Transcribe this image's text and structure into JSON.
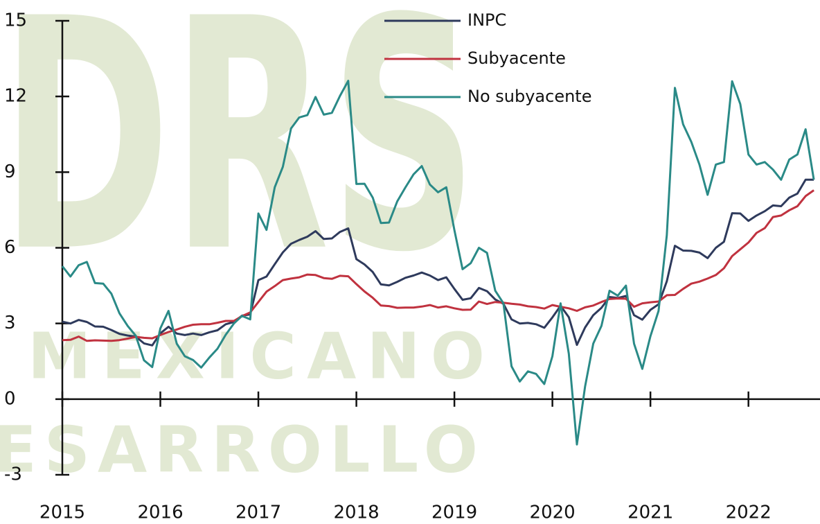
{
  "watermark": {
    "logo": "DRS",
    "line1": "MEXICANO",
    "line2": "ESARROLLO"
  },
  "chart_data": {
    "type": "line",
    "x": [
      2015,
      2015.083,
      2015.167,
      2015.25,
      2015.333,
      2015.417,
      2015.5,
      2015.583,
      2015.667,
      2015.75,
      2015.833,
      2015.917,
      2016,
      2016.083,
      2016.167,
      2016.25,
      2016.333,
      2016.417,
      2016.5,
      2016.583,
      2016.667,
      2016.75,
      2016.833,
      2016.917,
      2017,
      2017.083,
      2017.167,
      2017.25,
      2017.333,
      2017.417,
      2017.5,
      2017.583,
      2017.667,
      2017.75,
      2017.833,
      2017.917,
      2018,
      2018.083,
      2018.167,
      2018.25,
      2018.333,
      2018.417,
      2018.5,
      2018.583,
      2018.667,
      2018.75,
      2018.833,
      2018.917,
      2019,
      2019.083,
      2019.167,
      2019.25,
      2019.333,
      2019.417,
      2019.5,
      2019.583,
      2019.667,
      2019.75,
      2019.833,
      2019.917,
      2020,
      2020.083,
      2020.167,
      2020.25,
      2020.333,
      2020.417,
      2020.5,
      2020.583,
      2020.667,
      2020.75,
      2020.833,
      2020.917,
      2021,
      2021.083,
      2021.167,
      2021.25,
      2021.333,
      2021.417,
      2021.5,
      2021.583,
      2021.667,
      2021.75,
      2021.833,
      2021.917,
      2022,
      2022.083,
      2022.167,
      2022.25,
      2022.333,
      2022.417,
      2022.5,
      2022.583,
      2022.667
    ],
    "series": [
      {
        "name": "INPC",
        "color": "#2e3a5c",
        "values": [
          3.07,
          3.0,
          3.14,
          3.06,
          2.88,
          2.87,
          2.74,
          2.59,
          2.52,
          2.48,
          2.21,
          2.13,
          2.61,
          2.87,
          2.6,
          2.54,
          2.6,
          2.54,
          2.65,
          2.73,
          2.97,
          3.06,
          3.31,
          3.36,
          4.72,
          4.86,
          5.35,
          5.82,
          6.16,
          6.31,
          6.44,
          6.66,
          6.35,
          6.37,
          6.63,
          6.77,
          5.55,
          5.34,
          5.04,
          4.55,
          4.51,
          4.65,
          4.81,
          4.9,
          5.02,
          4.9,
          4.72,
          4.83,
          4.37,
          3.94,
          4.0,
          4.41,
          4.28,
          3.95,
          3.78,
          3.16,
          3.0,
          3.02,
          2.97,
          2.83,
          3.24,
          3.7,
          3.25,
          2.15,
          2.84,
          3.33,
          3.62,
          4.05,
          4.01,
          4.09,
          3.33,
          3.15,
          3.54,
          3.76,
          4.67,
          6.08,
          5.89,
          5.88,
          5.81,
          5.59,
          6.0,
          6.24,
          7.37,
          7.36,
          7.07,
          7.28,
          7.45,
          7.68,
          7.65,
          7.99,
          8.15,
          8.7,
          8.7
        ]
      },
      {
        "name": "Subyacente",
        "color": "#c0323f",
        "values": [
          2.34,
          2.35,
          2.48,
          2.31,
          2.33,
          2.32,
          2.31,
          2.34,
          2.4,
          2.47,
          2.43,
          2.41,
          2.54,
          2.66,
          2.76,
          2.87,
          2.95,
          2.97,
          2.97,
          3.03,
          3.1,
          3.1,
          3.29,
          3.44,
          3.85,
          4.26,
          4.48,
          4.72,
          4.78,
          4.83,
          4.94,
          4.92,
          4.8,
          4.77,
          4.89,
          4.87,
          4.56,
          4.27,
          4.02,
          3.71,
          3.69,
          3.62,
          3.63,
          3.63,
          3.67,
          3.73,
          3.63,
          3.68,
          3.6,
          3.54,
          3.55,
          3.87,
          3.77,
          3.85,
          3.82,
          3.78,
          3.75,
          3.68,
          3.65,
          3.59,
          3.73,
          3.66,
          3.6,
          3.5,
          3.64,
          3.71,
          3.85,
          3.97,
          3.99,
          3.98,
          3.66,
          3.8,
          3.84,
          3.87,
          4.12,
          4.13,
          4.37,
          4.58,
          4.66,
          4.78,
          4.92,
          5.19,
          5.67,
          5.94,
          6.21,
          6.59,
          6.78,
          7.22,
          7.28,
          7.49,
          7.65,
          8.05,
          8.28
        ]
      },
      {
        "name": "No subyacente",
        "color": "#2a8a87",
        "values": [
          5.27,
          4.86,
          5.31,
          5.44,
          4.6,
          4.58,
          4.18,
          3.4,
          2.9,
          2.51,
          1.54,
          1.27,
          2.8,
          3.5,
          2.2,
          1.7,
          1.55,
          1.25,
          1.65,
          2.0,
          2.55,
          3.0,
          3.3,
          3.16,
          7.36,
          6.71,
          8.4,
          9.21,
          10.73,
          11.17,
          11.26,
          11.98,
          11.28,
          11.35,
          12.02,
          12.62,
          8.53,
          8.54,
          7.99,
          6.98,
          7.0,
          7.84,
          8.39,
          8.91,
          9.24,
          8.51,
          8.2,
          8.4,
          6.7,
          5.15,
          5.39,
          6.0,
          5.8,
          4.3,
          3.8,
          1.3,
          0.7,
          1.1,
          1.0,
          0.6,
          1.7,
          3.8,
          1.8,
          -1.8,
          0.5,
          2.2,
          2.9,
          4.3,
          4.1,
          4.5,
          2.2,
          1.2,
          2.5,
          3.5,
          6.5,
          12.34,
          10.9,
          10.2,
          9.3,
          8.1,
          9.3,
          9.4,
          12.6,
          11.7,
          9.7,
          9.3,
          9.4,
          9.1,
          8.7,
          9.5,
          9.7,
          10.7,
          8.7
        ]
      }
    ],
    "xlim": [
      2015,
      2022.73
    ],
    "xticks": [
      2015,
      2016,
      2017,
      2018,
      2019,
      2020,
      2021,
      2022
    ],
    "ylim": [
      -3,
      15
    ],
    "yticks": [
      -3,
      0,
      3,
      6,
      9,
      12,
      15
    ],
    "legend": "top"
  }
}
